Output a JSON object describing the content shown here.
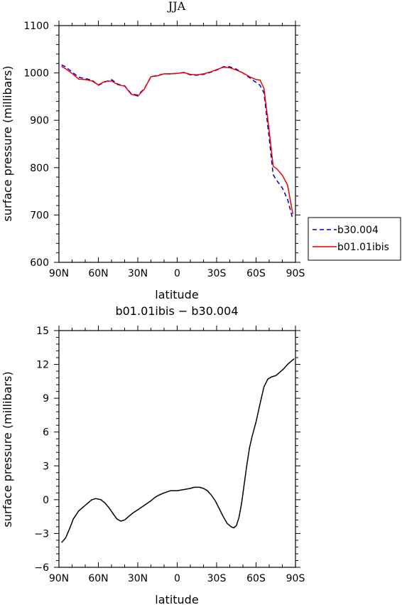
{
  "chart_data": [
    {
      "type": "line",
      "title": "JJA",
      "xlabel": "latitude",
      "ylabel": "surface pressure (millibars)",
      "xlim": [
        90,
        -90
      ],
      "ylim": [
        600,
        1100
      ],
      "x_ticks": [
        {
          "value": 90,
          "label": "90N"
        },
        {
          "value": 60,
          "label": "60N"
        },
        {
          "value": 30,
          "label": "30N"
        },
        {
          "value": 0,
          "label": "0"
        },
        {
          "value": -30,
          "label": "30S"
        },
        {
          "value": -60,
          "label": "60S"
        },
        {
          "value": -90,
          "label": "90S"
        }
      ],
      "y_ticks": [
        {
          "value": 600,
          "label": "600"
        },
        {
          "value": 700,
          "label": "700"
        },
        {
          "value": 800,
          "label": "800"
        },
        {
          "value": 900,
          "label": "900"
        },
        {
          "value": 1000,
          "label": "1000"
        },
        {
          "value": 1100,
          "label": "1100"
        }
      ],
      "legend_position": "right",
      "series": [
        {
          "name": "b30.004",
          "color": "#0000cc",
          "dash": true,
          "x": [
            88,
            85,
            80,
            75,
            70,
            65,
            60,
            55,
            50,
            45,
            40,
            35,
            30,
            25,
            20,
            15,
            10,
            5,
            0,
            -5,
            -10,
            -15,
            -20,
            -25,
            -30,
            -35,
            -40,
            -45,
            -50,
            -55,
            -60,
            -63,
            -66,
            -70,
            -73,
            -76,
            -80,
            -84,
            -88
          ],
          "y": [
            1017,
            1013,
            1002,
            991,
            988,
            985,
            974,
            981,
            986,
            976,
            973,
            956,
            953,
            967,
            992,
            995,
            998,
            998,
            999,
            1001,
            996,
            995,
            997,
            1001,
            1006,
            1013,
            1013,
            1008,
            1000,
            990,
            980,
            974,
            958,
            862,
            785,
            772,
            757,
            733,
            691
          ]
        },
        {
          "name": "b01.01ibis",
          "color": "#ee0000",
          "dash": false,
          "x": [
            88,
            85,
            80,
            75,
            70,
            65,
            60,
            55,
            50,
            45,
            40,
            35,
            30,
            25,
            20,
            15,
            10,
            5,
            0,
            -5,
            -10,
            -15,
            -20,
            -25,
            -30,
            -35,
            -40,
            -45,
            -50,
            -55,
            -60,
            -63,
            -66,
            -70,
            -73,
            -76,
            -80,
            -84,
            -88
          ],
          "y": [
            1014,
            1009,
            999,
            987,
            986,
            983,
            975,
            982,
            983,
            975,
            972,
            955,
            951,
            966,
            992,
            994,
            998,
            998,
            999,
            1001,
            997,
            996,
            998,
            1002,
            1007,
            1012,
            1011,
            1006,
            1000,
            992,
            986,
            985,
            968,
            878,
            803,
            797,
            784,
            763,
            702
          ]
        }
      ]
    },
    {
      "type": "line",
      "title": "b01.01ibis − b30.004",
      "xlabel": "latitude",
      "ylabel": "surface pressure (millibars)",
      "xlim": [
        90,
        -90
      ],
      "ylim": [
        -6,
        15
      ],
      "x_ticks": [
        {
          "value": 90,
          "label": "90N"
        },
        {
          "value": 60,
          "label": "60N"
        },
        {
          "value": 30,
          "label": "30N"
        },
        {
          "value": 0,
          "label": "0"
        },
        {
          "value": -30,
          "label": "30S"
        },
        {
          "value": -60,
          "label": "60S"
        },
        {
          "value": -90,
          "label": "90S"
        }
      ],
      "y_ticks": [
        {
          "value": -6,
          "label": "−6"
        },
        {
          "value": -3,
          "label": "−3"
        },
        {
          "value": 0,
          "label": "0"
        },
        {
          "value": 3,
          "label": "3"
        },
        {
          "value": 6,
          "label": "6"
        },
        {
          "value": 9,
          "label": "9"
        },
        {
          "value": 12,
          "label": "12"
        },
        {
          "value": 15,
          "label": "15"
        }
      ],
      "series": [
        {
          "color": "#000000",
          "dash": false,
          "x": [
            88,
            85,
            82,
            79,
            75,
            70,
            65,
            62,
            58,
            55,
            52,
            49,
            46,
            43,
            40,
            37,
            34,
            30,
            25,
            20,
            17,
            14,
            10,
            5,
            0,
            -5,
            -10,
            -13,
            -17,
            -20,
            -23,
            -26,
            -29,
            -32,
            -35,
            -38,
            -41,
            -43,
            -45,
            -47,
            -49,
            -51,
            -53,
            -55,
            -57,
            -60,
            -63,
            -66,
            -69,
            -72,
            -75,
            -78,
            -81,
            -84,
            -87,
            -89
          ],
          "y": [
            -3.8,
            -3.4,
            -2.6,
            -1.7,
            -1.0,
            -0.5,
            0.0,
            0.1,
            0.0,
            -0.3,
            -0.7,
            -1.2,
            -1.7,
            -1.9,
            -1.8,
            -1.5,
            -1.2,
            -0.9,
            -0.5,
            -0.1,
            0.2,
            0.4,
            0.6,
            0.8,
            0.8,
            0.9,
            1.0,
            1.1,
            1.1,
            1.0,
            0.8,
            0.4,
            -0.1,
            -0.8,
            -1.5,
            -2.1,
            -2.4,
            -2.5,
            -2.3,
            -1.6,
            -0.3,
            1.4,
            3.1,
            4.6,
            5.6,
            6.9,
            8.5,
            10.0,
            10.7,
            10.9,
            11.0,
            11.3,
            11.6,
            12.0,
            12.3,
            12.5
          ]
        }
      ]
    }
  ]
}
